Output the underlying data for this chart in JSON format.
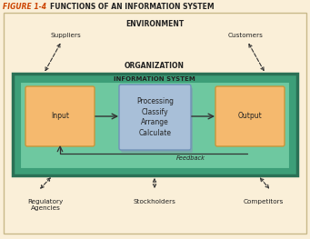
{
  "title_fig": "FIGURE 1-4",
  "title_text": "FUNCTIONS OF AN INFORMATION SYSTEM",
  "bg_color": "#faefd8",
  "outer_border_color": "#c8b98a",
  "env_label": "ENVIRONMENT",
  "org_label": "ORGANIZATION",
  "is_label": "INFORMATION SYSTEM",
  "is_outer_color": "#3d9e78",
  "is_outer_edge": "#2a7055",
  "is_inner_color": "#6ec8a0",
  "is_inner_edge": "#3d9e78",
  "input_label": "Input",
  "input_box_color": "#f5b96e",
  "input_box_edge": "#c8963a",
  "output_label": "Output",
  "output_box_color": "#f5b96e",
  "output_box_edge": "#c8963a",
  "proc_label": "Processing\nClassify\nArrange\nCalculate",
  "proc_box_color": "#a8bfd8",
  "proc_box_edge": "#7090b8",
  "proc_box_shadow": "#8090b0",
  "feedback_label": "Feedback",
  "suppliers_label": "Suppliers",
  "customers_label": "Customers",
  "reg_label": "Regulatory\nAgencies",
  "stock_label": "Stockholders",
  "comp_label": "Competitors",
  "title_color": "#cc4400",
  "label_color": "#222222",
  "arrow_color": "#333333",
  "font_size_title": 5.5,
  "font_size_env": 5.5,
  "font_size_labels": 5.2,
  "font_size_box": 5.5,
  "font_size_is": 5.0,
  "font_size_feedback": 4.8
}
